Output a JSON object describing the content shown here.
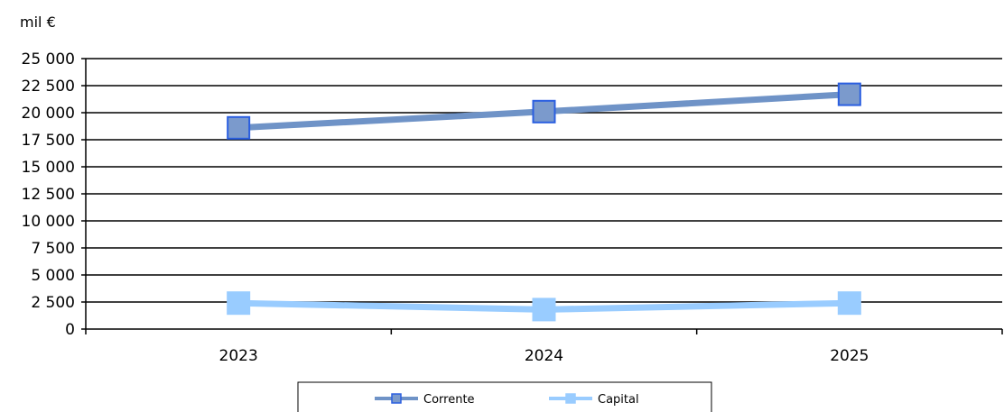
{
  "chart_data": {
    "type": "line",
    "ylabel": "mil €",
    "categories": [
      "2023",
      "2024",
      "2025"
    ],
    "ylim": [
      0,
      25000
    ],
    "yticks": [
      0,
      2500,
      5000,
      7500,
      10000,
      12500,
      15000,
      17500,
      20000,
      22500,
      25000
    ],
    "ytick_labels": [
      "0",
      "2 500",
      "5 000",
      "7 500",
      "10 000",
      "12 500",
      "15 000",
      "17 500",
      "20 000",
      "22 500",
      "25 000"
    ],
    "grid": true,
    "legend": "bottom",
    "series": [
      {
        "name": "Corrente",
        "values": [
          18600,
          20100,
          21700
        ],
        "color": "#6f93c7",
        "marker_color": "#7b9acc",
        "marker_edge": "#2b5fe0"
      },
      {
        "name": "Capital",
        "values": [
          2400,
          1800,
          2400
        ],
        "color": "#99ccff",
        "marker_color": "#99ccff",
        "marker_edge": "#99ccff"
      }
    ]
  }
}
